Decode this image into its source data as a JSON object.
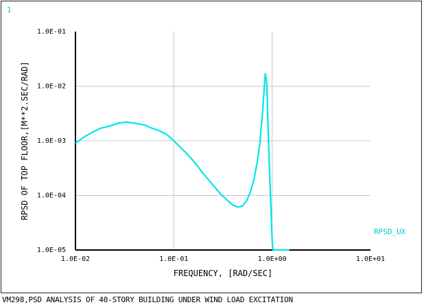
{
  "window_number": "1",
  "caption": "VM298,PSD ANALYSIS OF 40-STORY BUILDING UNDER WIND LOAD EXCITATION",
  "colors": {
    "curve": "#00e5e5",
    "label": "#00d0d0",
    "grid": "#c8c8c8",
    "axis": "#000000"
  },
  "chart_data": {
    "type": "line",
    "xscale": "log",
    "yscale": "log",
    "xlim": [
      0.01,
      10
    ],
    "ylim": [
      1e-05,
      0.1
    ],
    "xlabel": "FREQUENCY, [RAD/SEC]",
    "ylabel": "RPSD OF TOP FLOOR,[M**2.SEC/RAD]",
    "x_ticks": [
      0.01,
      0.1,
      1,
      10
    ],
    "x_tick_labels": [
      "1.0E-02",
      "1.0E-01",
      "1.0E+00",
      "1.0E+01"
    ],
    "y_ticks": [
      1e-05,
      0.0001,
      0.001,
      0.01,
      0.1
    ],
    "y_tick_labels": [
      "1.0E-05",
      "1.0E-04",
      "1.0E-03",
      "1.0E-02",
      "1.0E-01"
    ],
    "grid": true,
    "series": [
      {
        "name": "RPSD_UX",
        "x": [
          0.01,
          0.012,
          0.015,
          0.018,
          0.022,
          0.027,
          0.033,
          0.04,
          0.05,
          0.06,
          0.07,
          0.085,
          0.1,
          0.13,
          0.16,
          0.2,
          0.25,
          0.3,
          0.35,
          0.4,
          0.45,
          0.5,
          0.55,
          0.6,
          0.65,
          0.7,
          0.75,
          0.8,
          0.85,
          0.88,
          0.9,
          0.92,
          0.94,
          0.96,
          0.98,
          1.0,
          1.02,
          1.06,
          1.1,
          1.2,
          1.4,
          1.5
        ],
        "y": [
          0.0009,
          0.00115,
          0.00145,
          0.0017,
          0.00185,
          0.0021,
          0.0022,
          0.0021,
          0.00195,
          0.0017,
          0.00155,
          0.0013,
          0.001,
          0.00063,
          0.00042,
          0.00025,
          0.000155,
          0.000105,
          8.2e-05,
          6.6e-05,
          6.1e-05,
          6.4e-05,
          8e-05,
          0.000115,
          0.00019,
          0.00038,
          0.0009,
          0.0035,
          0.017,
          0.012,
          0.0035,
          0.0009,
          0.0003,
          0.00011,
          4e-05,
          1.5e-05,
          1e-05,
          1e-05,
          1e-05,
          1e-05,
          1e-05,
          1e-05
        ]
      }
    ]
  }
}
